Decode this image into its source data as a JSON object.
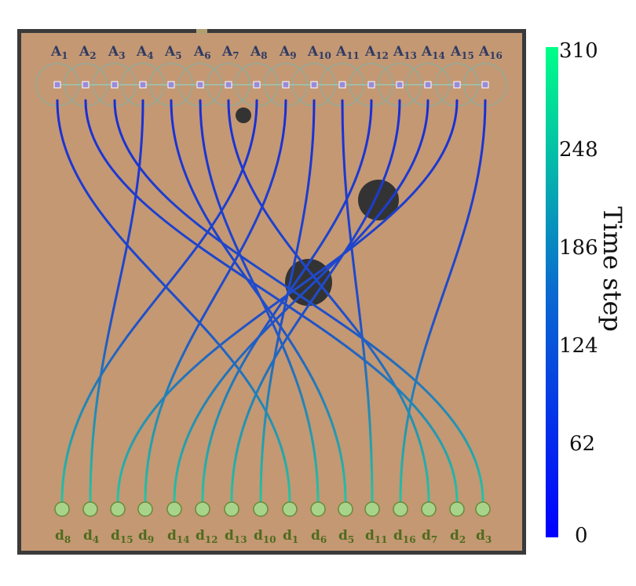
{
  "agents_top": [
    "A1",
    "A2",
    "A3",
    "A4",
    "A5",
    "A6",
    "A7",
    "A8",
    "A9",
    "A10",
    "A11",
    "A12",
    "A13",
    "A14",
    "A15",
    "A16"
  ],
  "destinations_bottom": [
    "d8",
    "d4",
    "d15",
    "d9",
    "d14",
    "d12",
    "d13",
    "d10",
    "d1",
    "d6",
    "d5",
    "d11",
    "d16",
    "d7",
    "d2",
    "d3"
  ],
  "colorbar": {
    "title": "Time step",
    "ticks": [
      "310",
      "248",
      "186",
      "124",
      "62",
      "0"
    ],
    "range": [
      0,
      310
    ],
    "colors": {
      "low": "#0000ff",
      "high": "#00ff88"
    }
  },
  "colors": {
    "arena": "#c39873",
    "frame": "#3a3a3a",
    "agent_label": "#2f3a63",
    "dest_label": "#4f6b1d",
    "dest_fill": "#a8d38a",
    "dest_stroke": "#6a8a3a",
    "agent_marker": "#9a8ad8",
    "obstacle": "#333333"
  }
}
